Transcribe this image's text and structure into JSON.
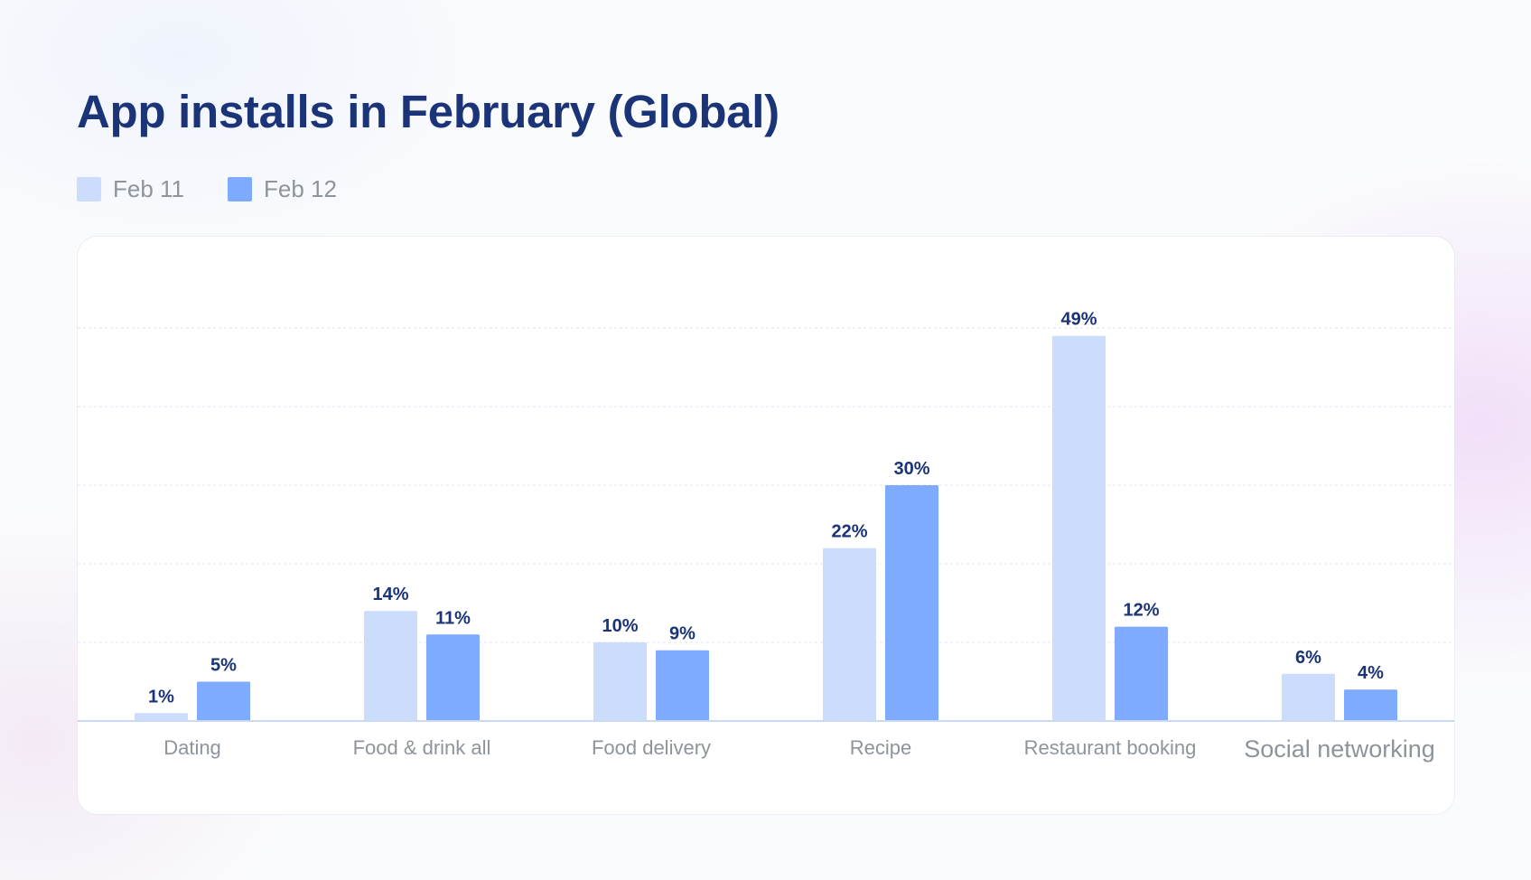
{
  "chart_data": {
    "type": "bar",
    "title": "App installs in February (Global)",
    "xlabel": "",
    "ylabel": "",
    "ylim": [
      0,
      50
    ],
    "grid": true,
    "legend_position": "top-left",
    "categories": [
      "Dating",
      "Food & drink all",
      "Food delivery",
      "Recipe",
      "Restaurant booking",
      "Social networking"
    ],
    "series": [
      {
        "name": "Feb 11",
        "color": "#cbdcfd",
        "values": [
          1,
          14,
          10,
          22,
          49,
          6
        ],
        "labels": [
          "1%",
          "14%",
          "10%",
          "22%",
          "49%",
          "6%"
        ]
      },
      {
        "name": "Feb 12",
        "color": "#7eaaff",
        "values": [
          5,
          11,
          9,
          30,
          12,
          4
        ],
        "labels": [
          "5%",
          "11%",
          "9%",
          "30%",
          "12%",
          "4%"
        ]
      }
    ]
  }
}
